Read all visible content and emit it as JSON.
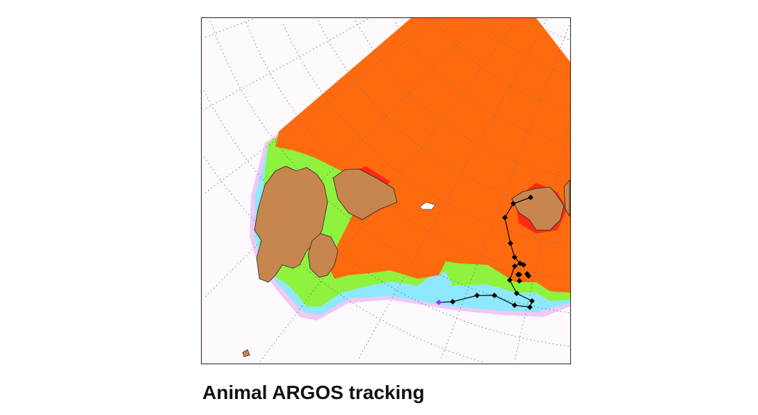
{
  "caption": "Animal ARGOS tracking",
  "map": {
    "layers": [
      "open-water",
      "ice-edge",
      "sea-ice",
      "land",
      "animal-track"
    ],
    "colors": {
      "open_water": "#ff6a0e",
      "open_water_warm": "#ff2a10",
      "ice_edge": "#8ef23e",
      "sea_ice": "#8ee8ff",
      "sea_ice_outer": "#f0c8f4",
      "land": "#c8864f",
      "track": "#000000",
      "track_start": "#9b30ff",
      "graticule": "#777777"
    }
  }
}
